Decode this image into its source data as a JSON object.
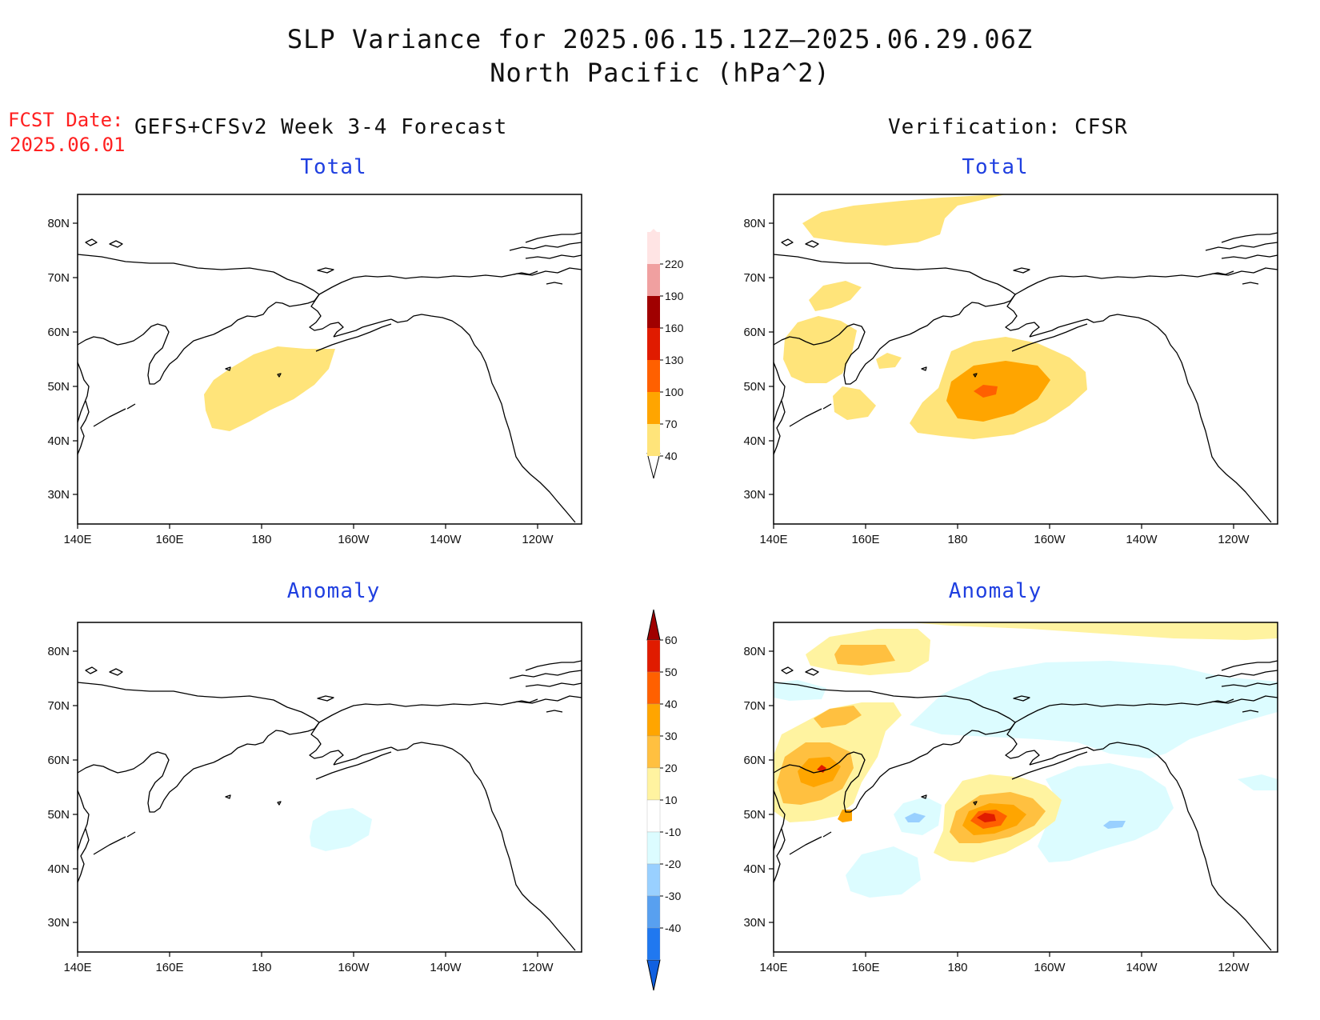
{
  "title": {
    "line1": "SLP Variance for 2025.06.15.12Z–2025.06.29.06Z",
    "line2": "North Pacific (hPa^2)"
  },
  "fcst": {
    "label": "FCST Date:",
    "date": "2025.06.01"
  },
  "left_header": "GEFS+CFSv2 Week 3-4 Forecast",
  "right_header": "Verification: CFSR",
  "panels": {
    "top_left_title": "Total",
    "top_right_title": "Total",
    "bottom_left_title": "Anomaly",
    "bottom_right_title": "Anomaly"
  },
  "axes": {
    "lat_labels": [
      "80N",
      "70N",
      "60N",
      "50N",
      "40N",
      "30N"
    ],
    "lon_labels": [
      "140E",
      "160E",
      "180",
      "160W",
      "140W",
      "120W"
    ]
  },
  "total_colorbar": {
    "levels": [
      "40",
      "70",
      "100",
      "130",
      "160",
      "190",
      "220"
    ],
    "colors": [
      "#ffe47a",
      "#ffa500",
      "#ff6000",
      "#e01b00",
      "#a00000",
      "#f0a0a0",
      "#ffe4e4"
    ]
  },
  "anomaly_colorbar": {
    "levels": [
      "60",
      "50",
      "40",
      "30",
      "20",
      "10",
      "-10",
      "-20",
      "-30",
      "-40"
    ],
    "colors": [
      "#a00000",
      "#e01b00",
      "#ff6000",
      "#ffa500",
      "#ffc040",
      "#fff3a0",
      "#ffffff",
      "#dcfcff",
      "#99d0ff",
      "#58a0f0",
      "#2078f0",
      "#1060e0"
    ]
  },
  "colors": {
    "title": "#111111",
    "fcst_red": "#ff2020",
    "subtitle_blue": "#1f3fe0"
  }
}
